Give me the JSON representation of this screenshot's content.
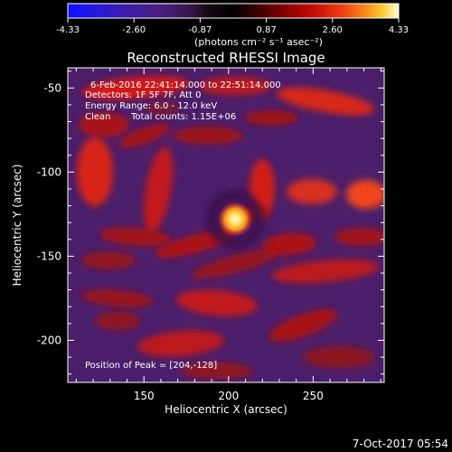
{
  "chart_data": {
    "type": "heatmap",
    "title": "Reconstructed RHESSI Image",
    "xlabel": "Heliocentric X (arcsec)",
    "ylabel": "Heliocentric Y (arcsec)",
    "xlim": [
      105,
      292
    ],
    "ylim": [
      -225,
      -38
    ],
    "x_ticks": [
      150,
      200,
      250
    ],
    "y_ticks": [
      -50,
      -100,
      -150,
      -200
    ],
    "colorbar": {
      "min": -4.33,
      "max": 4.33,
      "ticks": [
        "-4.33",
        "-2.60",
        "-0.87",
        "0.87",
        "2.60",
        "4.33"
      ],
      "unit_label": "(photons cm⁻² s⁻¹ asec⁻²)",
      "colors": [
        "#0a10ff",
        "#3a16c8",
        "#4a1e82",
        "#4a1e5a",
        "#1a0a18",
        "#000000",
        "#3a0000",
        "#8a0000",
        "#c01008",
        "#e43a10",
        "#f57a18",
        "#fbb420",
        "#fff080",
        "#ffffff"
      ]
    },
    "peak": {
      "x": 204,
      "y": -128
    },
    "annotations": {
      "time": "6-Feb-2016 22:41:14.000 to 22:51:14.000",
      "detectors": "Detectors: 1F 5F 7F, Att 0",
      "energy": "Energy Range: 6.0 - 12.0 keV",
      "clean": "Clean",
      "counts": "Total counts: 1.15E+06",
      "peak_label": "Position of Peak = [204,-128]"
    },
    "footer_date": "7-Oct-2017 05:54"
  }
}
